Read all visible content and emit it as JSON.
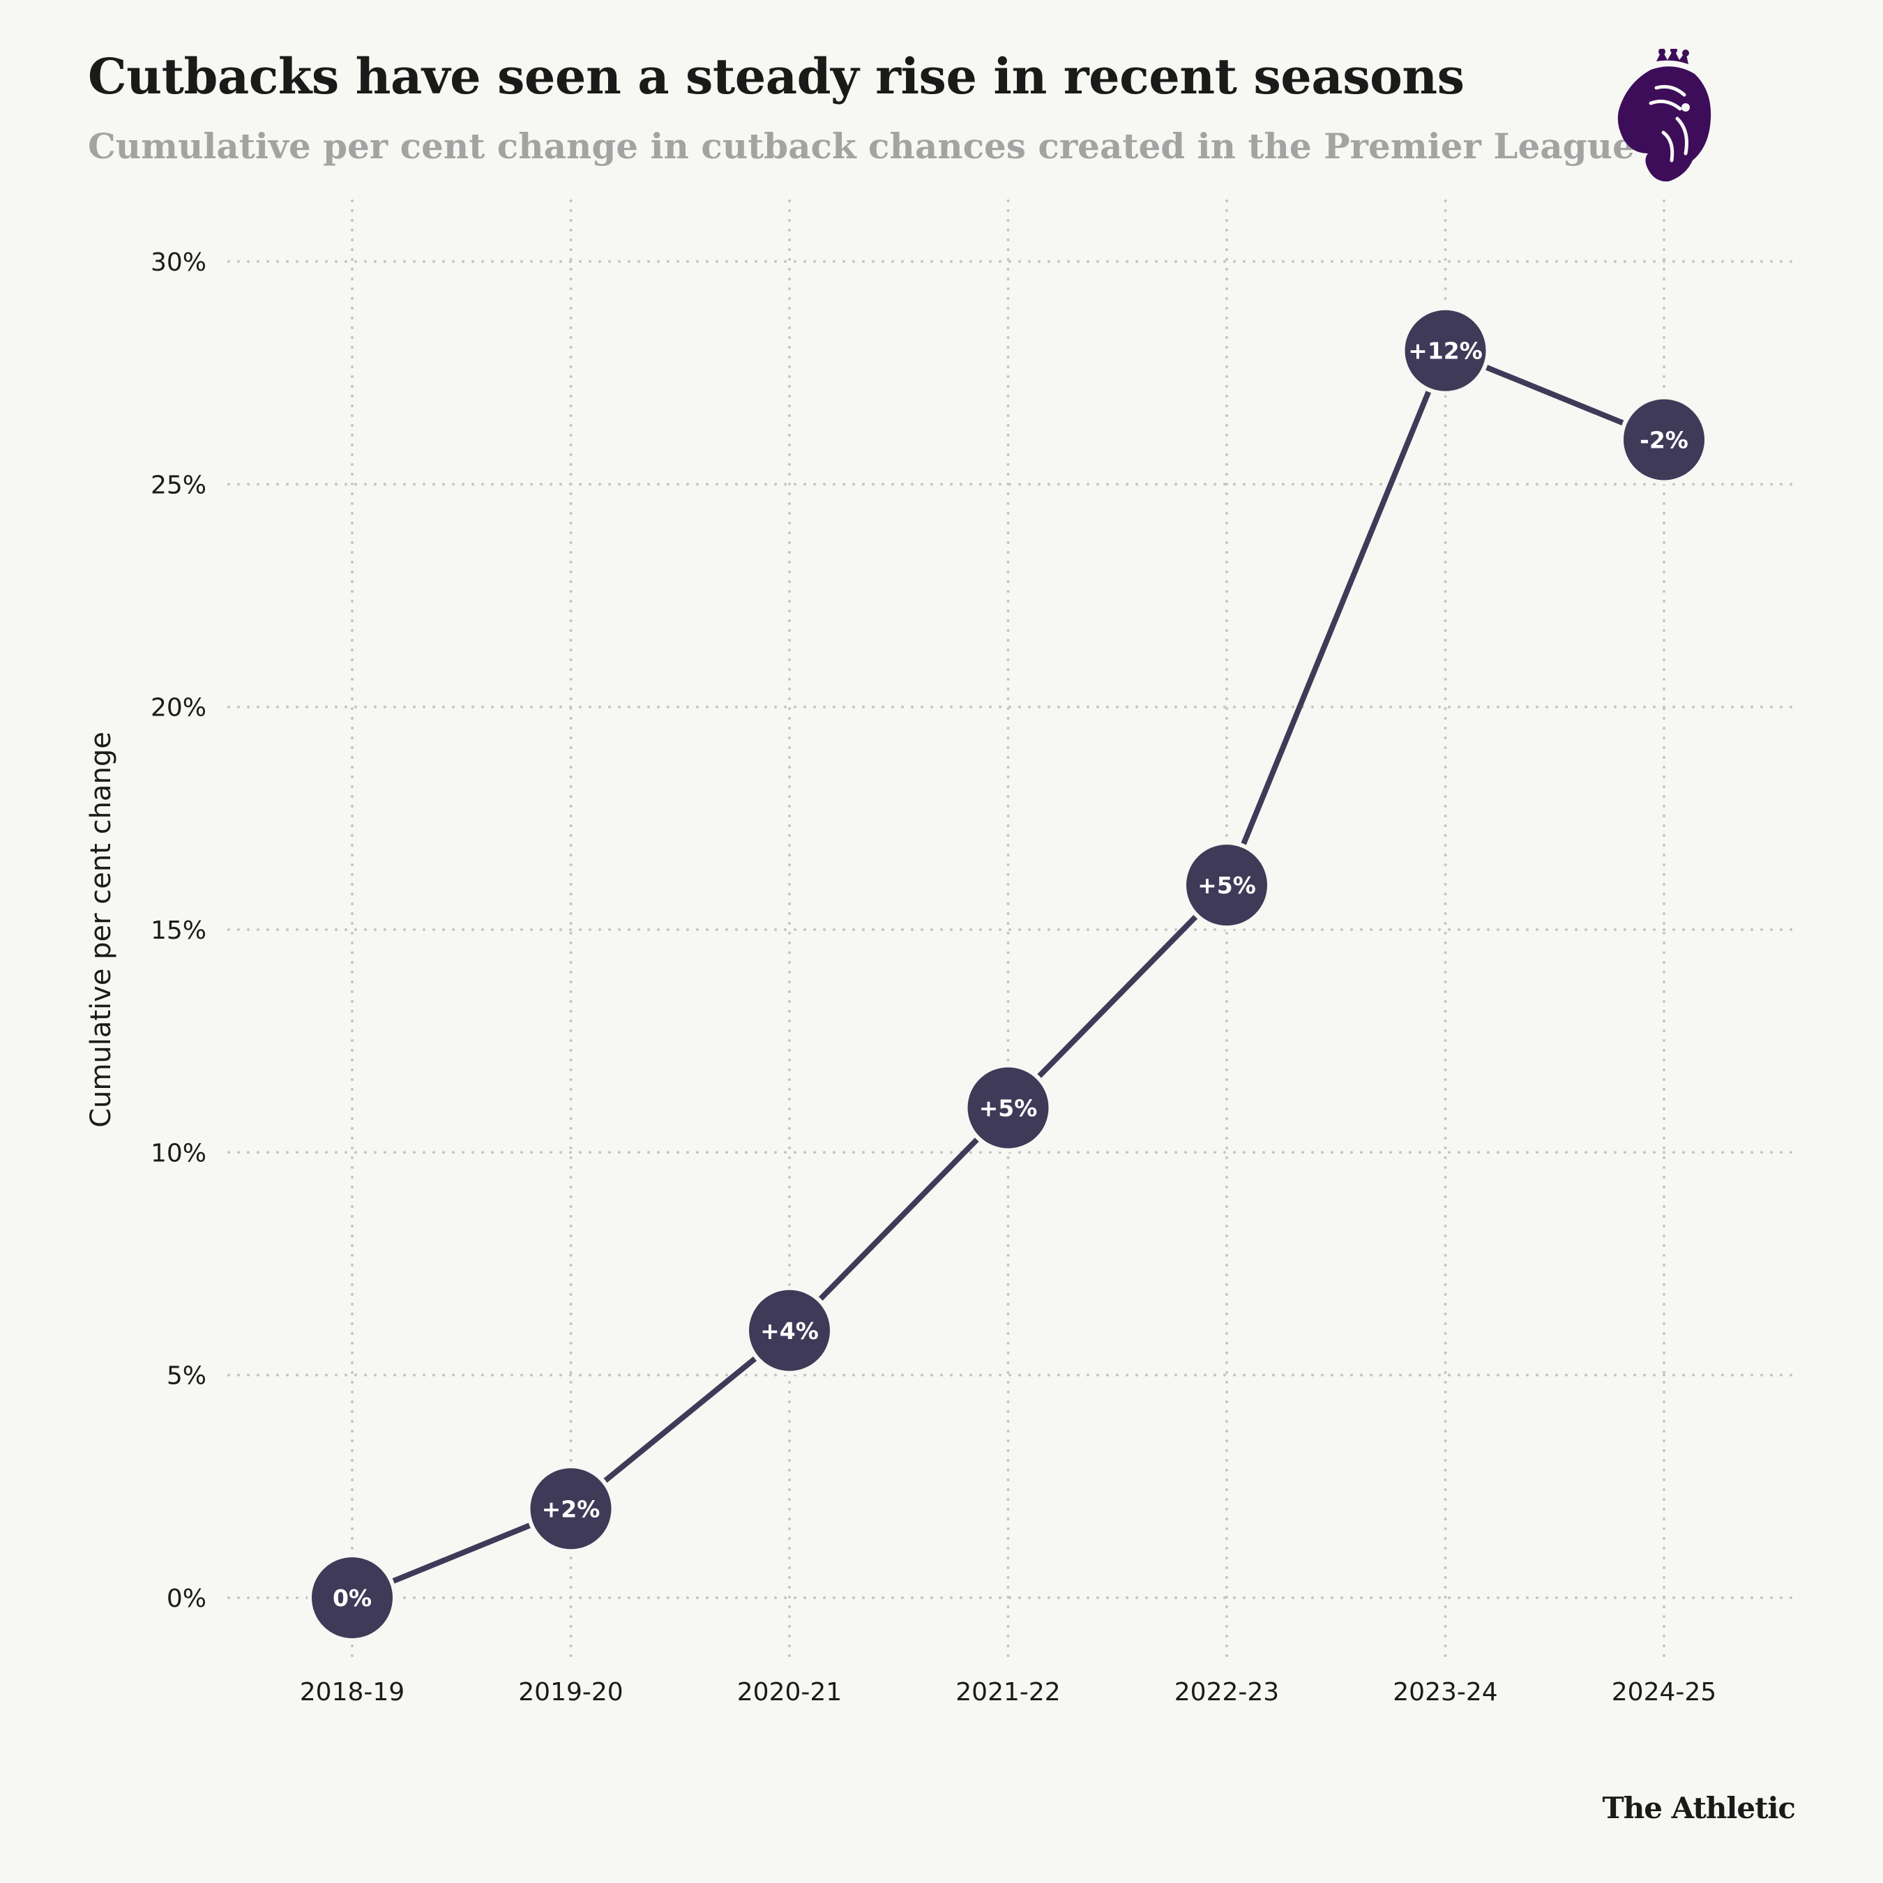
{
  "header": {
    "title": "Cutbacks have seen a steady rise in recent seasons",
    "subtitle": "Cumulative per cent change in cutback chances created in the Premier League"
  },
  "footer": {
    "brand": "The Athletic"
  },
  "logo": {
    "icon": "premier-league-lion-icon",
    "color": "#3d0d5a"
  },
  "colors": {
    "background": "#f7f7f3",
    "line": "#3e3a58",
    "marker": "#3e3a58",
    "grid": "#c4c4c4"
  },
  "chart_data": {
    "type": "line",
    "title": "Cutbacks have seen a steady rise in recent seasons",
    "subtitle": "Cumulative per cent change in cutback chances created in the Premier League",
    "xlabel": "",
    "ylabel": "Cumulative per cent change",
    "categories": [
      "2018-19",
      "2019-20",
      "2020-21",
      "2021-22",
      "2022-23",
      "2023-24",
      "2024-25"
    ],
    "series": [
      {
        "values": [
          0,
          2,
          6,
          11,
          16,
          28,
          26
        ],
        "point_labels": [
          "0%",
          "+2%",
          "+4%",
          "+5%",
          "+5%",
          "+12%",
          "-2%"
        ]
      }
    ],
    "ylim": [
      0,
      30
    ],
    "yticks": [
      0,
      5,
      10,
      15,
      20,
      25,
      30
    ],
    "ytick_labels": [
      "0%",
      "5%",
      "10%",
      "15%",
      "20%",
      "25%",
      "30%"
    ],
    "grid": true,
    "grid_style": "dotted",
    "legend": "none"
  }
}
